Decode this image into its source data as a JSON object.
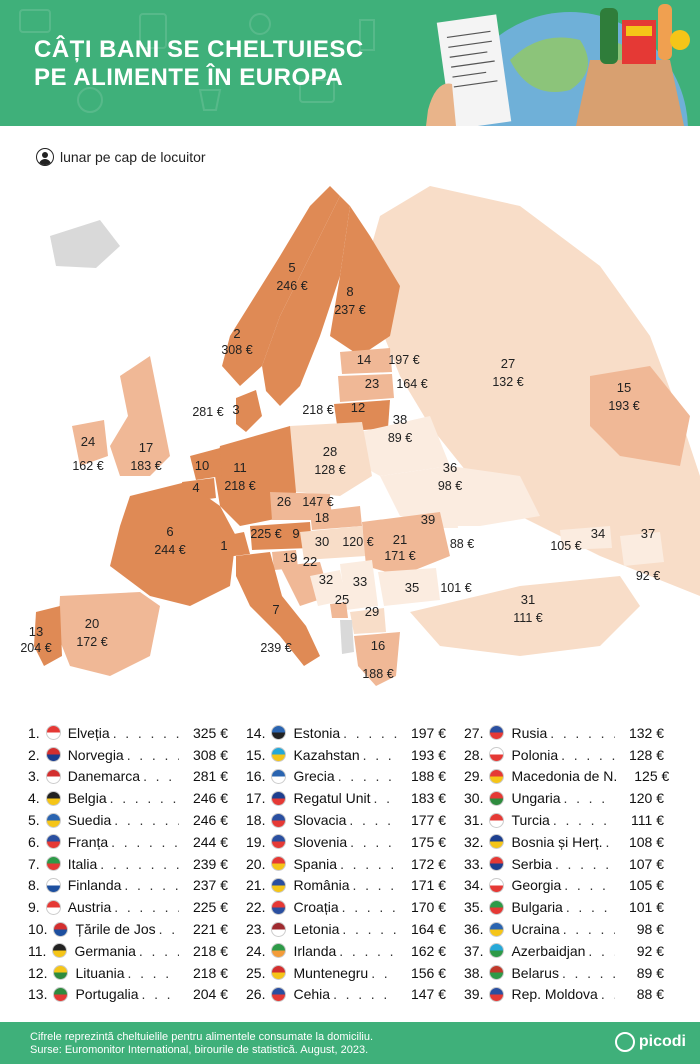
{
  "header": {
    "title_line1": "CÂȚI BANI SE CHELTUIESC",
    "title_line2": "PE ALIMENTE ÎN EUROPA"
  },
  "subtitle": "lunar pe cap de locuitor",
  "colors": {
    "brand_green": "#3fb07a",
    "scale_high": "#df8a55",
    "scale_mid": "#f0b896",
    "scale_low": "#f8ddc8",
    "scale_lowest": "#fbece0",
    "non_ranked": "#d9d9d9"
  },
  "map_labels": [
    {
      "n": "5",
      "v": "246 €"
    },
    {
      "n": "8",
      "v": "237 €"
    },
    {
      "n": "2",
      "v": "308 €"
    },
    {
      "n": "14",
      "v": "197 €"
    },
    {
      "n": "27",
      "v": "132 €"
    },
    {
      "n": "23",
      "v": "164 €"
    },
    {
      "n": "15",
      "v": "193 €"
    },
    {
      "n": "3",
      "v": "281 €"
    },
    {
      "n": "12",
      "v": "218 €"
    },
    {
      "n": "38",
      "v": "89 €"
    },
    {
      "n": "24",
      "v": "162 €"
    },
    {
      "n": "17",
      "v": "183 €"
    },
    {
      "n": "28",
      "v": "128 €"
    },
    {
      "n": "36",
      "v": "98 €"
    },
    {
      "n": "10",
      "v": ""
    },
    {
      "n": "11",
      "v": "218 €"
    },
    {
      "n": "4",
      "v": ""
    },
    {
      "n": "26",
      "v": "147 €"
    },
    {
      "n": "18",
      "v": ""
    },
    {
      "n": "39",
      "v": "88 €"
    },
    {
      "n": "6",
      "v": "244 €"
    },
    {
      "n": "9",
      "v": "225 €"
    },
    {
      "n": "30",
      "v": "120 €"
    },
    {
      "n": "21",
      "v": "171 €"
    },
    {
      "n": "34",
      "v": "105 €"
    },
    {
      "n": "37",
      "v": "92 €"
    },
    {
      "n": "1",
      "v": ""
    },
    {
      "n": "19",
      "v": ""
    },
    {
      "n": "22",
      "v": ""
    },
    {
      "n": "32",
      "v": ""
    },
    {
      "n": "33",
      "v": ""
    },
    {
      "n": "35",
      "v": "101 €"
    },
    {
      "n": "25",
      "v": ""
    },
    {
      "n": "29",
      "v": ""
    },
    {
      "n": "31",
      "v": "111 €"
    },
    {
      "n": "20",
      "v": "172 €"
    },
    {
      "n": "7",
      "v": "239 €"
    },
    {
      "n": "13",
      "v": "204 €"
    },
    {
      "n": "16",
      "v": "188 €"
    }
  ],
  "ranking": [
    {
      "rank": "1.",
      "name": "Elveția",
      "value": "325 €",
      "flag": [
        "#e53935",
        "#ffffff"
      ]
    },
    {
      "rank": "2.",
      "name": "Norvegia",
      "value": "308 €",
      "flag": [
        "#d32f2f",
        "#1a3d8f"
      ]
    },
    {
      "rank": "3.",
      "name": "Danemarca",
      "value": "281 €",
      "flag": [
        "#d32f2f",
        "#ffffff"
      ]
    },
    {
      "rank": "4.",
      "name": "Belgia",
      "value": "246 €",
      "flag": [
        "#222222",
        "#f5c518"
      ]
    },
    {
      "rank": "5.",
      "name": "Suedia",
      "value": "246 €",
      "flag": [
        "#2a64b0",
        "#f5c518"
      ]
    },
    {
      "rank": "6.",
      "name": "Franța",
      "value": "244 €",
      "flag": [
        "#2a4fa0",
        "#e53935"
      ]
    },
    {
      "rank": "7.",
      "name": "Italia",
      "value": "239 €",
      "flag": [
        "#2e9a48",
        "#e53935"
      ]
    },
    {
      "rank": "8.",
      "name": "Finlanda",
      "value": "237 €",
      "flag": [
        "#ffffff",
        "#1d4f9f"
      ]
    },
    {
      "rank": "9.",
      "name": "Austria",
      "value": "225 €",
      "flag": [
        "#e53935",
        "#ffffff"
      ]
    },
    {
      "rank": "10.",
      "name": "Țările de Jos",
      "value": "221 €",
      "flag": [
        "#d32f2f",
        "#1d4f9f"
      ]
    },
    {
      "rank": "11.",
      "name": "Germania",
      "value": "218 €",
      "flag": [
        "#222222",
        "#f5c518"
      ]
    },
    {
      "rank": "12.",
      "name": "Lituania",
      "value": "218 €",
      "flag": [
        "#f5c518",
        "#2e8b3e"
      ]
    },
    {
      "rank": "13.",
      "name": "Portugalia",
      "value": "204 €",
      "flag": [
        "#2e8b3e",
        "#e53935"
      ]
    },
    {
      "rank": "14.",
      "name": "Estonia",
      "value": "197 €",
      "flag": [
        "#2a64b0",
        "#222222"
      ]
    },
    {
      "rank": "15.",
      "name": "Kazahstan",
      "value": "193 €",
      "flag": [
        "#26a8d8",
        "#f5c518"
      ]
    },
    {
      "rank": "16.",
      "name": "Grecia",
      "value": "188 €",
      "flag": [
        "#2a64b0",
        "#ffffff"
      ]
    },
    {
      "rank": "17.",
      "name": "Regatul Unit",
      "value": "183 €",
      "flag": [
        "#1d3f8f",
        "#e53935"
      ]
    },
    {
      "rank": "18.",
      "name": "Slovacia",
      "value": "177 €",
      "flag": [
        "#2a4fa0",
        "#e53935"
      ]
    },
    {
      "rank": "19.",
      "name": "Slovenia",
      "value": "175 €",
      "flag": [
        "#2a4fa0",
        "#e53935"
      ]
    },
    {
      "rank": "20.",
      "name": "Spania",
      "value": "172 €",
      "flag": [
        "#e53935",
        "#f5c518"
      ]
    },
    {
      "rank": "21.",
      "name": "România",
      "value": "171 €",
      "flag": [
        "#2a4fa0",
        "#f5c518"
      ]
    },
    {
      "rank": "22.",
      "name": "Croația",
      "value": "170 €",
      "flag": [
        "#e53935",
        "#2a4fa0"
      ]
    },
    {
      "rank": "23.",
      "name": "Letonia",
      "value": "164 €",
      "flag": [
        "#9e2a2f",
        "#ffffff"
      ]
    },
    {
      "rank": "24.",
      "name": "Irlanda",
      "value": "162 €",
      "flag": [
        "#2e9a48",
        "#f39c3a"
      ]
    },
    {
      "rank": "25.",
      "name": "Muntenegru",
      "value": "156 €",
      "flag": [
        "#d32f2f",
        "#f5c518"
      ]
    },
    {
      "rank": "26.",
      "name": "Cehia",
      "value": "147 €",
      "flag": [
        "#2a4fa0",
        "#e53935"
      ]
    },
    {
      "rank": "27.",
      "name": "Rusia",
      "value": "132 €",
      "flag": [
        "#2a4fa0",
        "#e53935"
      ]
    },
    {
      "rank": "28.",
      "name": "Polonia",
      "value": "128 €",
      "flag": [
        "#ffffff",
        "#e53935"
      ]
    },
    {
      "rank": "29.",
      "name": "Macedonia de N.",
      "value": "125 €",
      "flag": [
        "#e53935",
        "#f5c518"
      ]
    },
    {
      "rank": "30.",
      "name": "Ungaria",
      "value": "120 €",
      "flag": [
        "#e53935",
        "#2e8b3e"
      ]
    },
    {
      "rank": "31.",
      "name": "Turcia",
      "value": "111 €",
      "flag": [
        "#e53935",
        "#ffffff"
      ]
    },
    {
      "rank": "32.",
      "name": "Bosnia și Herț.",
      "value": "108 €",
      "flag": [
        "#1d3f8f",
        "#f5c518"
      ]
    },
    {
      "rank": "33.",
      "name": "Serbia",
      "value": "107 €",
      "flag": [
        "#e53935",
        "#1d3f8f"
      ]
    },
    {
      "rank": "34.",
      "name": "Georgia",
      "value": "105 €",
      "flag": [
        "#ffffff",
        "#e53935"
      ]
    },
    {
      "rank": "35.",
      "name": "Bulgaria",
      "value": "101 €",
      "flag": [
        "#2e9a48",
        "#e53935"
      ]
    },
    {
      "rank": "36.",
      "name": "Ucraina",
      "value": "98 €",
      "flag": [
        "#2a64b0",
        "#f5c518"
      ]
    },
    {
      "rank": "37.",
      "name": "Azerbaidjan",
      "value": "92 €",
      "flag": [
        "#26a8d8",
        "#2e9a48"
      ]
    },
    {
      "rank": "38.",
      "name": "Belarus",
      "value": "89 €",
      "flag": [
        "#c0392b",
        "#2e9a48"
      ]
    },
    {
      "rank": "39.",
      "name": "Rep. Moldova",
      "value": "88 €",
      "flag": [
        "#2a4fa0",
        "#e53935"
      ]
    }
  ],
  "footer": {
    "line1": "Cifrele reprezintă cheltuielile pentru alimentele consumate la domiciliu.",
    "line2": "Surse: Euromonitor International, birourile de statistică. August, 2023.",
    "logo": "picodi"
  }
}
